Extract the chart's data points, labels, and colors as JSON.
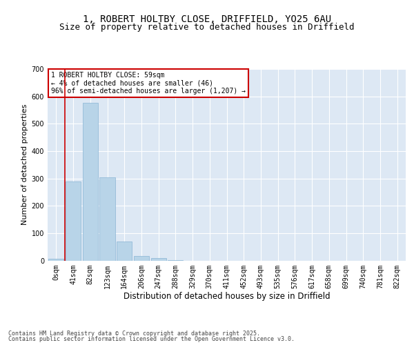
{
  "title_line1": "1, ROBERT HOLTBY CLOSE, DRIFFIELD, YO25 6AU",
  "title_line2": "Size of property relative to detached houses in Driffield",
  "xlabel": "Distribution of detached houses by size in Driffield",
  "ylabel": "Number of detached properties",
  "bar_values": [
    7,
    290,
    577,
    305,
    70,
    16,
    10,
    2,
    0,
    0,
    0,
    0,
    0,
    0,
    0,
    0,
    0,
    0,
    0,
    0,
    0
  ],
  "bin_labels": [
    "0sqm",
    "41sqm",
    "82sqm",
    "123sqm",
    "164sqm",
    "206sqm",
    "247sqm",
    "288sqm",
    "329sqm",
    "370sqm",
    "411sqm",
    "452sqm",
    "493sqm",
    "535sqm",
    "576sqm",
    "617sqm",
    "658sqm",
    "699sqm",
    "740sqm",
    "781sqm",
    "822sqm"
  ],
  "bar_color": "#b8d4e8",
  "bar_edge_color": "#88b4d4",
  "bg_color": "#dde8f4",
  "grid_color": "#ffffff",
  "vline_color": "#cc0000",
  "vline_x": 0.5,
  "annotation_text": "1 ROBERT HOLTBY CLOSE: 59sqm\n← 4% of detached houses are smaller (46)\n96% of semi-detached houses are larger (1,207) →",
  "annotation_box_edge_color": "#cc0000",
  "ylim": [
    0,
    700
  ],
  "yticks": [
    0,
    100,
    200,
    300,
    400,
    500,
    600,
    700
  ],
  "footnote_line1": "Contains HM Land Registry data © Crown copyright and database right 2025.",
  "footnote_line2": "Contains public sector information licensed under the Open Government Licence v3.0.",
  "title_fontsize": 10,
  "subtitle_fontsize": 9,
  "axis_label_fontsize": 8,
  "tick_fontsize": 7,
  "annot_fontsize": 7
}
